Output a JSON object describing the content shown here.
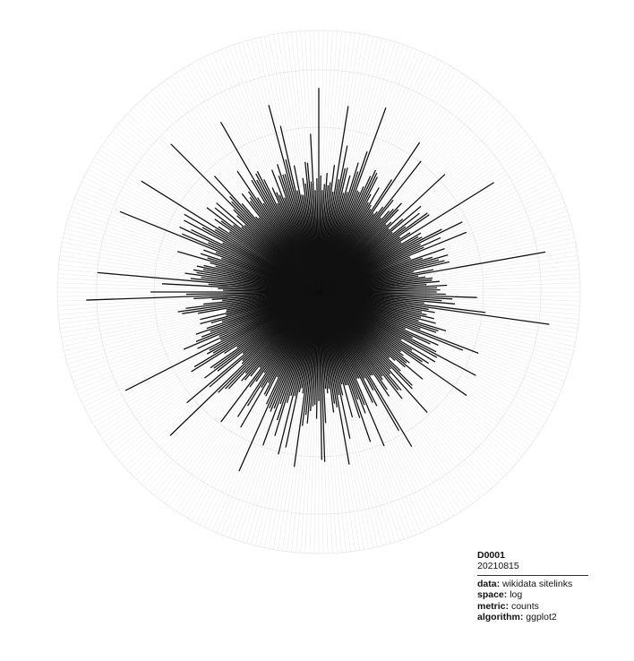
{
  "caption": {
    "code": "D0001",
    "date": "20210815",
    "rows": [
      {
        "key": "data:",
        "value": "wikidata sitelinks"
      },
      {
        "key": "space:",
        "value": "log"
      },
      {
        "key": "metric:",
        "value": "counts"
      },
      {
        "key": "algorithm:",
        "value": "ggplot2"
      }
    ]
  },
  "chart_data": {
    "type": "radial-bar",
    "coordinate_system": "polar",
    "value_scale": "log",
    "bar_color": "#111111",
    "grid_color": "#e6e6e6",
    "grid": true,
    "legend": "none",
    "title": "",
    "xlabel": "",
    "ylabel": "",
    "ylim": [
      0,
      10
    ],
    "n_bars": 360,
    "spikes": [
      {
        "angle": 0,
        "value": 7.8
      },
      {
        "angle": 9,
        "value": 7.2
      },
      {
        "angle": 20,
        "value": 7.5
      },
      {
        "angle": 34,
        "value": 6.9
      },
      {
        "angle": 47,
        "value": 6.6
      },
      {
        "angle": 58,
        "value": 7.9
      },
      {
        "angle": 80,
        "value": 8.8
      },
      {
        "angle": 98,
        "value": 8.9
      },
      {
        "angle": 118,
        "value": 6.8
      },
      {
        "angle": 125,
        "value": 6.9
      },
      {
        "angle": 138,
        "value": 6.2
      },
      {
        "angle": 149,
        "value": 6.9
      },
      {
        "angle": 157,
        "value": 6.4
      },
      {
        "angle": 170,
        "value": 6.7
      },
      {
        "angle": 178,
        "value": 6.5
      },
      {
        "angle": 194,
        "value": 6.4
      },
      {
        "angle": 204,
        "value": 7.5
      },
      {
        "angle": 226,
        "value": 7.9
      },
      {
        "angle": 243,
        "value": 8.3
      },
      {
        "angle": 268,
        "value": 8.9
      },
      {
        "angle": 275,
        "value": 8.5
      },
      {
        "angle": 292,
        "value": 8.2
      },
      {
        "angle": 302,
        "value": 8.0
      },
      {
        "angle": 315,
        "value": 8.0
      },
      {
        "angle": 330,
        "value": 7.5
      },
      {
        "angle": 345,
        "value": 7.4
      }
    ]
  }
}
